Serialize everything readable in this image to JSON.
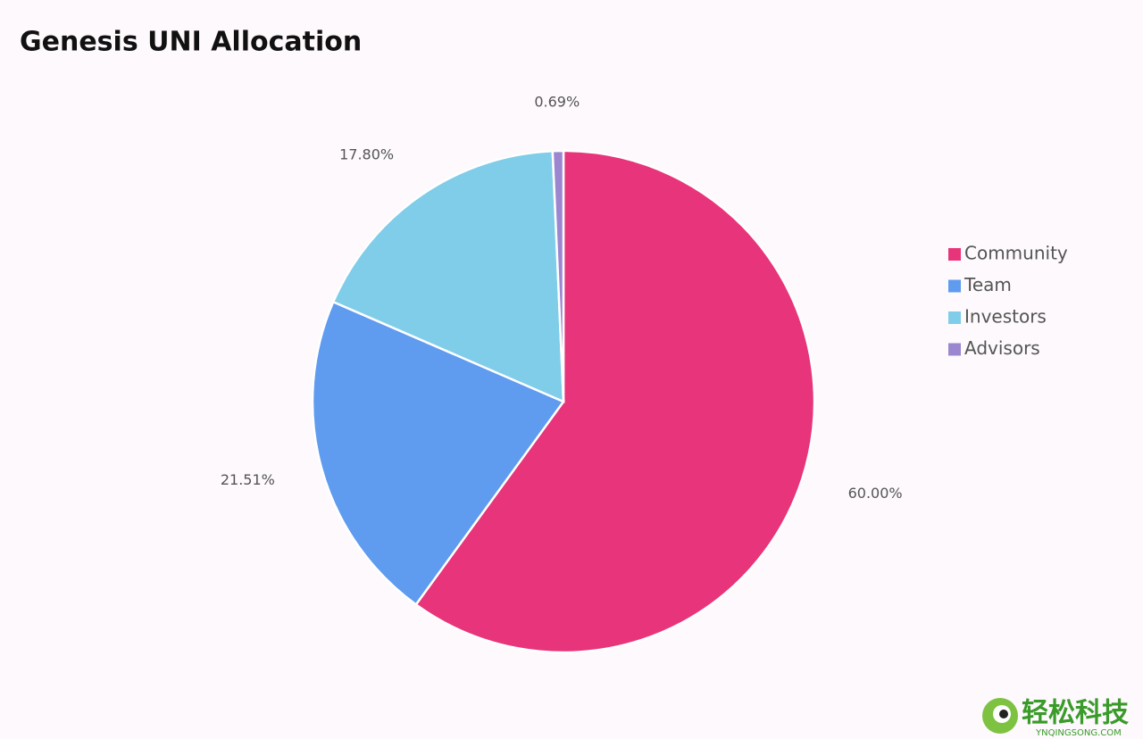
{
  "chart_data": {
    "type": "pie",
    "title": "Genesis UNI Allocation",
    "categories": [
      "Community",
      "Team",
      "Investors",
      "Advisors"
    ],
    "values": [
      60.0,
      21.51,
      17.8,
      0.69
    ],
    "value_labels": [
      "60.00%",
      "21.51%",
      "17.80%",
      "0.69%"
    ],
    "colors": [
      "#e8347a",
      "#5f9bef",
      "#80cde9",
      "#9b87d0"
    ],
    "legend": "right"
  },
  "watermark": {
    "text": "轻松科技",
    "subtext": "YNQINGSONG.COM"
  }
}
